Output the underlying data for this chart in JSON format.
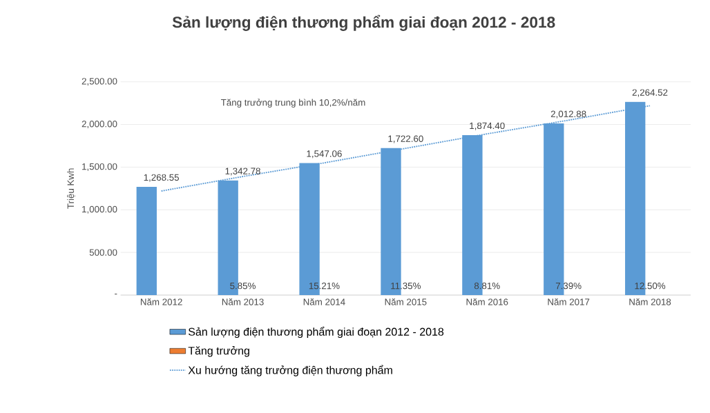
{
  "chart_data": {
    "type": "bar",
    "title": "Sản lượng điện thương phẩm giai đoạn 2012 - 2018",
    "ylabel": "Triệu Kwh",
    "categories": [
      "Năm 2012",
      "Năm 2013",
      "Năm 2014",
      "Năm 2015",
      "Năm 2016",
      "Năm 2017",
      "Năm 2018"
    ],
    "series": [
      {
        "name": "Sản lượng điện thương phẩm giai đoạn 2012 - 2018",
        "color": "#5b9bd5",
        "values": [
          1268.55,
          1342.78,
          1547.06,
          1722.6,
          1874.4,
          2012.88,
          2264.52
        ],
        "value_labels": [
          "1,268.55",
          "1,342.78",
          "1,547.06",
          "1,722.60",
          "1,874.40",
          "2,012.88",
          "2,264.52"
        ]
      },
      {
        "name": "Tăng trưởng",
        "color": "#ed7d31",
        "values": [
          null,
          0.0585,
          0.1521,
          0.1135,
          0.0881,
          0.0739,
          0.125
        ],
        "value_labels": [
          null,
          "5.85%",
          "15.21%",
          "11.35%",
          "8.81%",
          "7.39%",
          "12.50%"
        ]
      },
      {
        "name": "Xu hướng tăng trưởng điện thương phẩm",
        "type": "line",
        "color": "#5b9bd5",
        "line_style": "dotted",
        "values": [
          1220,
          1390,
          1550,
          1720,
          1890,
          2050,
          2220
        ]
      }
    ],
    "ylim": [
      0,
      2500
    ],
    "yticks": [
      {
        "value": 0,
        "label": "-"
      },
      {
        "value": 500,
        "label": "500.00"
      },
      {
        "value": 1000,
        "label": "1,000.00"
      },
      {
        "value": 1500,
        "label": "1,500.00"
      },
      {
        "value": 2000,
        "label": "2,000.00"
      },
      {
        "value": 2500,
        "label": "2,500.00"
      }
    ],
    "grid": "y",
    "legend": "bottom",
    "annotations": [
      "Tăng trưởng trung bình 10,2%/năm"
    ]
  }
}
